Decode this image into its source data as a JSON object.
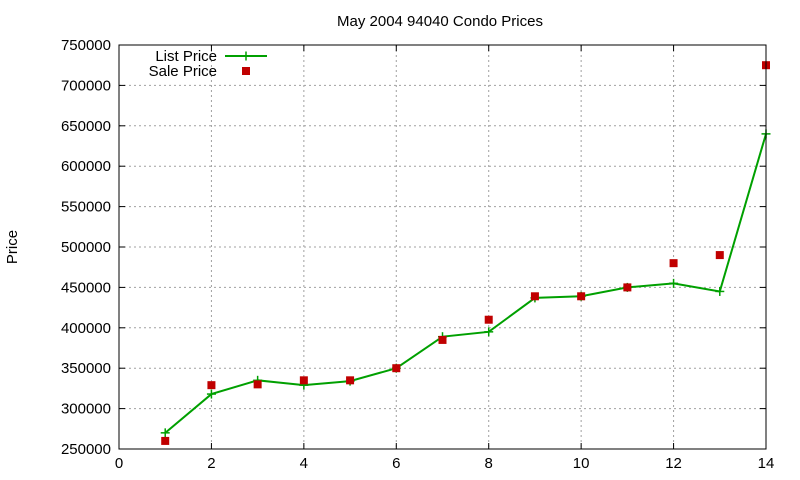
{
  "chart_data": {
    "type": "line",
    "title": "May 2004 94040 Condo Prices",
    "xlabel": "",
    "ylabel": "Price",
    "xlim": [
      0,
      14
    ],
    "ylim": [
      250000,
      750000
    ],
    "x_ticks": [
      0,
      2,
      4,
      6,
      8,
      10,
      12,
      14
    ],
    "y_ticks": [
      250000,
      300000,
      350000,
      400000,
      450000,
      500000,
      550000,
      600000,
      650000,
      700000,
      750000
    ],
    "grid": true,
    "legend_position": "top-left",
    "series": [
      {
        "name": "List Price",
        "style": "lines-with-plus-markers",
        "color": "#00a000",
        "x": [
          1,
          2,
          3,
          4,
          5,
          6,
          7,
          8,
          9,
          10,
          11,
          12,
          13,
          14
        ],
        "y": [
          270000,
          318000,
          335000,
          329000,
          334000,
          350000,
          389000,
          395000,
          437000,
          439000,
          450000,
          455000,
          445000,
          640000
        ]
      },
      {
        "name": "Sale Price",
        "style": "square-points",
        "color": "#c00000",
        "x": [
          1,
          2,
          3,
          4,
          5,
          6,
          7,
          8,
          9,
          10,
          11,
          12,
          13,
          14
        ],
        "y": [
          260000,
          329000,
          330000,
          335000,
          335000,
          350000,
          385000,
          410000,
          439000,
          439000,
          450000,
          480000,
          490000,
          725000
        ]
      }
    ]
  }
}
